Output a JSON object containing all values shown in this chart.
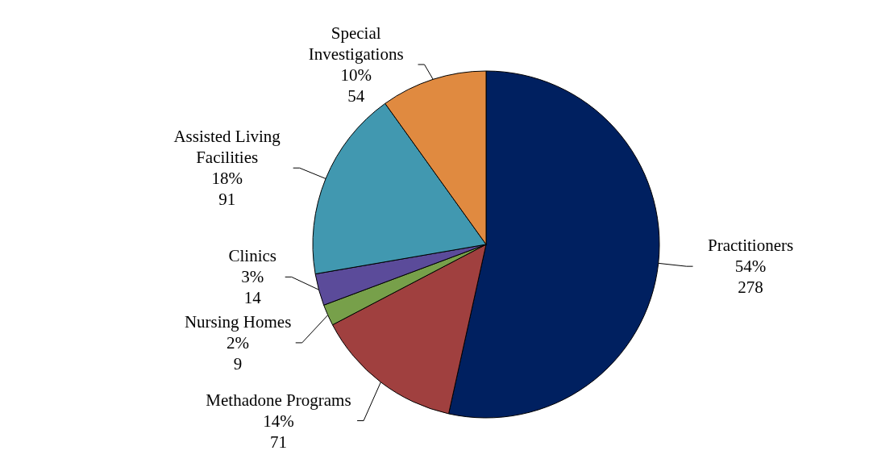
{
  "chart_data": {
    "type": "pie",
    "categories": [
      "Practitioners",
      "Methadone Programs",
      "Nursing Homes",
      "Clinics",
      "Assisted Living Facilities",
      "Special Investigations"
    ],
    "values": [
      54,
      14,
      2,
      3,
      18,
      10
    ],
    "value_labels": [
      "54%\n278",
      "14%\n71",
      "2%\n9",
      "3%\n14",
      "18%\n91",
      "10%\n54"
    ],
    "colors": [
      "#002060",
      "#a0403f",
      "#77a04a",
      "#5b4b9a",
      "#4198b0",
      "#e08a40"
    ]
  }
}
